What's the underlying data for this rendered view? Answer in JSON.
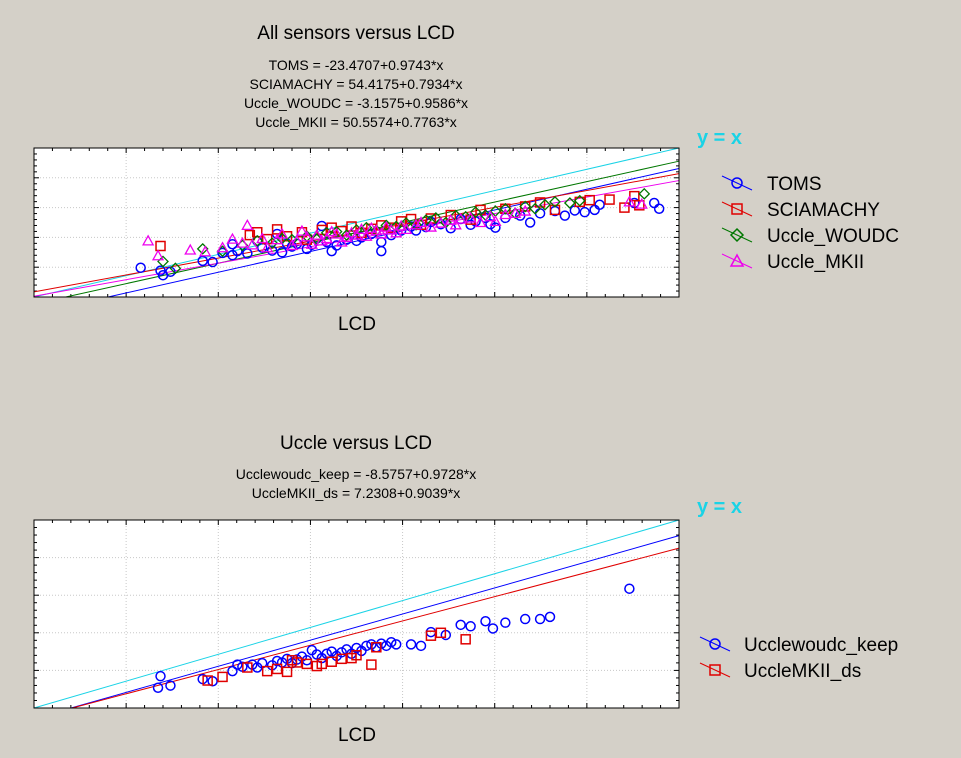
{
  "colors": {
    "background": "#d4d0c8",
    "plot_bg": "#ffffff",
    "identity": "#1ad3e6",
    "blue": "#0000ff",
    "red": "#e00000",
    "green": "#007700",
    "magenta": "#ee00ee"
  },
  "identity_label": "y = x",
  "chart_data": [
    {
      "type": "scatter",
      "title": "All sensors versus LCD",
      "xlabel": "LCD",
      "ylabel": "",
      "xlim": [
        220,
        480
      ],
      "ylim": [
        220,
        480
      ],
      "grid": true,
      "legend_position": "right",
      "identity_line": true,
      "equations": [
        "TOMS = -23.4707+0.9743*x",
        "SCIAMACHY = 54.4175+0.7934*x",
        "Uccle_WOUDC = -3.1575+0.9586*x",
        "Uccle_MKII = 50.5574+0.7763*x"
      ],
      "series": [
        {
          "name": "TOMS",
          "marker": "circle",
          "color_key": "blue",
          "intercept": -23.4707,
          "slope": 0.9743,
          "points": [
            [
              263,
              271
            ],
            [
              271,
              266
            ],
            [
              272,
              258
            ],
            [
              275,
              264
            ],
            [
              288,
              283
            ],
            [
              292,
              281
            ],
            [
              296,
              297
            ],
            [
              300,
              293
            ],
            [
              302,
              300
            ],
            [
              306,
              296
            ],
            [
              312,
              306
            ],
            [
              316,
              301
            ],
            [
              320,
              298
            ],
            [
              322,
              313
            ],
            [
              324,
              308
            ],
            [
              326,
              313
            ],
            [
              330,
              304
            ],
            [
              332,
              311
            ],
            [
              338,
              316
            ],
            [
              342,
              310
            ],
            [
              346,
              320
            ],
            [
              350,
              318
            ],
            [
              352,
              324
            ],
            [
              356,
              330
            ],
            [
              360,
              316
            ],
            [
              364,
              328
            ],
            [
              368,
              336
            ],
            [
              372,
              343
            ],
            [
              374,
              336
            ],
            [
              378,
              342
            ],
            [
              380,
              351
            ],
            [
              384,
              347
            ],
            [
              388,
              340
            ],
            [
              392,
              356
            ],
            [
              396,
              346
            ],
            [
              398,
              352
            ],
            [
              402,
              358
            ],
            [
              404,
              347
            ],
            [
              406,
              341
            ],
            [
              410,
              358
            ],
            [
              416,
              362
            ],
            [
              420,
              350
            ],
            [
              424,
              366
            ],
            [
              430,
              370
            ],
            [
              434,
              362
            ],
            [
              438,
              371
            ],
            [
              442,
              368
            ],
            [
              446,
              372
            ],
            [
              448,
              381
            ],
            [
              462,
              384
            ],
            [
              470,
              384
            ],
            [
              472,
              374
            ],
            [
              300,
              312
            ],
            [
              310,
              318
            ],
            [
              334,
              322
            ],
            [
              340,
              300
            ],
            [
              318,
              330
            ],
            [
              336,
              344
            ],
            [
              360,
              300
            ]
          ]
        },
        {
          "name": "SCIAMACHY",
          "marker": "square",
          "color_key": "red",
          "intercept": 54.4175,
          "slope": 0.7934,
          "points": [
            [
              271,
              309
            ],
            [
              307,
              328
            ],
            [
              310,
              333
            ],
            [
              314,
              321
            ],
            [
              318,
              338
            ],
            [
              322,
              326
            ],
            [
              328,
              333
            ],
            [
              330,
              320
            ],
            [
              336,
              337
            ],
            [
              340,
              341
            ],
            [
              344,
              335
            ],
            [
              348,
              343
            ],
            [
              352,
              332
            ],
            [
              356,
              339
            ],
            [
              360,
              345
            ],
            [
              364,
              341
            ],
            [
              368,
              352
            ],
            [
              372,
              356
            ],
            [
              376,
              346
            ],
            [
              380,
              357
            ],
            [
              388,
              363
            ],
            [
              396,
              355
            ],
            [
              400,
              372
            ],
            [
              410,
              374
            ],
            [
              418,
              378
            ],
            [
              424,
              385
            ],
            [
              430,
              372
            ],
            [
              440,
              386
            ],
            [
              444,
              389
            ],
            [
              452,
              390
            ],
            [
              458,
              376
            ],
            [
              462,
              396
            ],
            [
              464,
              380
            ]
          ]
        },
        {
          "name": "Uccle_WOUDC",
          "marker": "diamond",
          "color_key": "green",
          "intercept": -3.1575,
          "slope": 0.9586,
          "points": [
            [
              272,
              282
            ],
            [
              277,
              270
            ],
            [
              288,
              304
            ],
            [
              296,
              300
            ],
            [
              304,
              310
            ],
            [
              310,
              318
            ],
            [
              316,
              314
            ],
            [
              320,
              322
            ],
            [
              324,
              320
            ],
            [
              330,
              326
            ],
            [
              334,
              321
            ],
            [
              338,
              332
            ],
            [
              342,
              334
            ],
            [
              346,
              328
            ],
            [
              350,
              337
            ],
            [
              354,
              341
            ],
            [
              358,
              336
            ],
            [
              362,
              345
            ],
            [
              366,
              343
            ],
            [
              370,
              349
            ],
            [
              374,
              346
            ],
            [
              378,
              354
            ],
            [
              382,
              358
            ],
            [
              386,
              350
            ],
            [
              390,
              362
            ],
            [
              394,
              360
            ],
            [
              398,
              368
            ],
            [
              402,
              363
            ],
            [
              406,
              370
            ],
            [
              410,
              374
            ],
            [
              414,
              366
            ],
            [
              418,
              378
            ],
            [
              422,
              374
            ],
            [
              426,
              381
            ],
            [
              430,
              386
            ],
            [
              436,
              384
            ],
            [
              440,
              388
            ],
            [
              466,
              400
            ]
          ]
        },
        {
          "name": "Uccle_MKII",
          "marker": "triangle",
          "color_key": "magenta",
          "intercept": 50.5574,
          "slope": 0.7763,
          "points": [
            [
              266,
              318
            ],
            [
              270,
              292
            ],
            [
              283,
              302
            ],
            [
              289,
              299
            ],
            [
              296,
              306
            ],
            [
              300,
              321
            ],
            [
              304,
              314
            ],
            [
              306,
              345
            ],
            [
              308,
              311
            ],
            [
              312,
              322
            ],
            [
              314,
              306
            ],
            [
              318,
              320
            ],
            [
              320,
              330
            ],
            [
              324,
              310
            ],
            [
              326,
              318
            ],
            [
              328,
              335
            ],
            [
              330,
              325
            ],
            [
              332,
              312
            ],
            [
              334,
              328
            ],
            [
              336,
              318
            ],
            [
              338,
              322
            ],
            [
              340,
              334
            ],
            [
              342,
              330
            ],
            [
              344,
              316
            ],
            [
              346,
              324
            ],
            [
              348,
              332
            ],
            [
              350,
              328
            ],
            [
              352,
              338
            ],
            [
              354,
              326
            ],
            [
              356,
              340
            ],
            [
              358,
              336
            ],
            [
              360,
              330
            ],
            [
              362,
              342
            ],
            [
              364,
              337
            ],
            [
              366,
              332
            ],
            [
              368,
              344
            ],
            [
              370,
              338
            ],
            [
              374,
              346
            ],
            [
              376,
              350
            ],
            [
              380,
              342
            ],
            [
              384,
              349
            ],
            [
              388,
              354
            ],
            [
              390,
              346
            ],
            [
              392,
              356
            ],
            [
              396,
              358
            ],
            [
              400,
              350
            ],
            [
              404,
              360
            ],
            [
              406,
              352
            ],
            [
              410,
              364
            ],
            [
              414,
              366
            ],
            [
              418,
              370
            ],
            [
              460,
              386
            ],
            [
              465,
              382
            ]
          ]
        }
      ]
    },
    {
      "type": "scatter",
      "title": "Uccle  versus LCD",
      "xlabel": "LCD",
      "ylabel": "",
      "xlim": [
        220,
        480
      ],
      "ylim": [
        220,
        480
      ],
      "grid": true,
      "legend_position": "right",
      "identity_line": true,
      "equations": [
        "Ucclewoudc_keep = -8.5757+0.9728*x",
        "UccleMKII_ds = 7.2308+0.9039*x"
      ],
      "series": [
        {
          "name": "Ucclewoudc_keep",
          "marker": "circle",
          "color_key": "blue",
          "intercept": -8.5757,
          "slope": 0.9728,
          "points": [
            [
              270,
              248
            ],
            [
              271,
              264
            ],
            [
              275,
              251
            ],
            [
              288,
              260
            ],
            [
              292,
              257
            ],
            [
              300,
              271
            ],
            [
              302,
              280
            ],
            [
              304,
              277
            ],
            [
              308,
              280
            ],
            [
              310,
              276
            ],
            [
              312,
              282
            ],
            [
              316,
              279
            ],
            [
              318,
              285
            ],
            [
              320,
              283
            ],
            [
              322,
              288
            ],
            [
              324,
              282
            ],
            [
              326,
              287
            ],
            [
              328,
              291
            ],
            [
              330,
              286
            ],
            [
              332,
              300
            ],
            [
              334,
              294
            ],
            [
              336,
              289
            ],
            [
              338,
              295
            ],
            [
              340,
              298
            ],
            [
              342,
              292
            ],
            [
              344,
              297
            ],
            [
              346,
              301
            ],
            [
              348,
              295
            ],
            [
              350,
              303
            ],
            [
              352,
              299
            ],
            [
              354,
              306
            ],
            [
              356,
              308
            ],
            [
              358,
              304
            ],
            [
              360,
              309
            ],
            [
              362,
              306
            ],
            [
              364,
              311
            ],
            [
              366,
              308
            ],
            [
              372,
              308
            ],
            [
              376,
              306
            ],
            [
              380,
              325
            ],
            [
              386,
              321
            ],
            [
              392,
              335
            ],
            [
              396,
              333
            ],
            [
              402,
              340
            ],
            [
              405,
              330
            ],
            [
              410,
              338
            ],
            [
              418,
              343
            ],
            [
              424,
              343
            ],
            [
              428,
              346
            ],
            [
              460,
              385
            ]
          ]
        },
        {
          "name": "UccleMKII_ds",
          "marker": "square",
          "color_key": "red",
          "intercept": 7.2308,
          "slope": 0.9039,
          "points": [
            [
              290,
              258
            ],
            [
              296,
              263
            ],
            [
              306,
              276
            ],
            [
              314,
              271
            ],
            [
              318,
              274
            ],
            [
              322,
              270
            ],
            [
              324,
              286
            ],
            [
              326,
              283
            ],
            [
              330,
              281
            ],
            [
              334,
              278
            ],
            [
              336,
              281
            ],
            [
              340,
              284
            ],
            [
              344,
              288
            ],
            [
              348,
              289
            ],
            [
              350,
              293
            ],
            [
              356,
              280
            ],
            [
              358,
              304
            ],
            [
              380,
              320
            ],
            [
              384,
              324
            ],
            [
              394,
              315
            ]
          ]
        }
      ]
    }
  ]
}
